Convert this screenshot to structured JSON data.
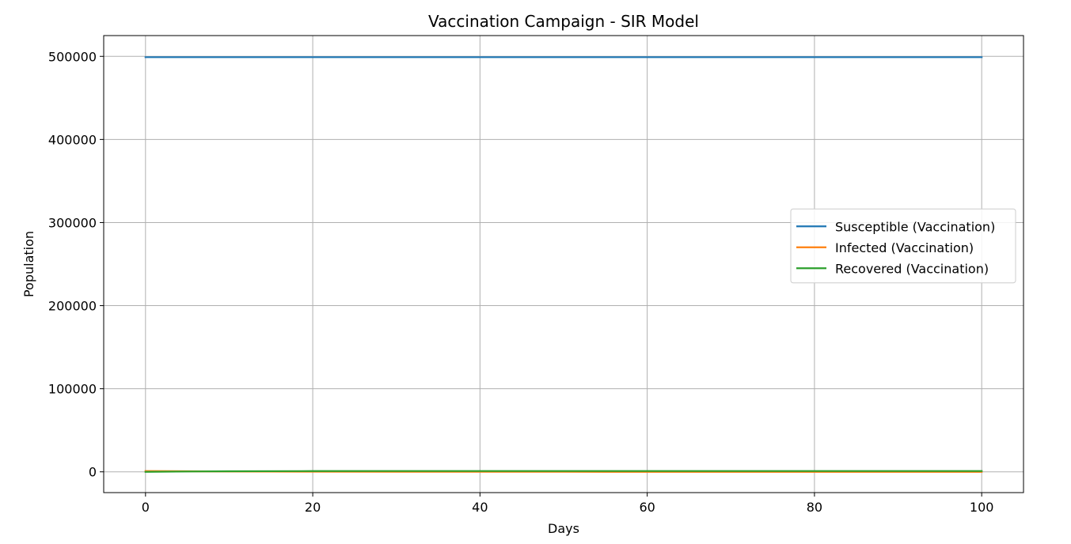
{
  "chart_data": {
    "type": "line",
    "title": "Vaccination Campaign - SIR Model",
    "xlabel": "Days",
    "ylabel": "Population",
    "xlim": [
      -5,
      105
    ],
    "ylim": [
      -25000,
      525000
    ],
    "xticks": [
      0,
      20,
      40,
      60,
      80,
      100
    ],
    "yticks": [
      0,
      100000,
      200000,
      300000,
      400000,
      500000
    ],
    "grid": true,
    "legend_position": "center-right",
    "series": [
      {
        "name": "Susceptible (Vaccination)",
        "color": "#1f77b4",
        "x": [
          0,
          10,
          20,
          30,
          40,
          50,
          60,
          70,
          80,
          90,
          100
        ],
        "y": [
          499000,
          499000,
          499000,
          499000,
          499000,
          499000,
          499000,
          499000,
          499000,
          499000,
          499000
        ]
      },
      {
        "name": "Infected (Vaccination)",
        "color": "#ff7f0e",
        "x": [
          0,
          5,
          10,
          20,
          30,
          40,
          50,
          60,
          70,
          80,
          90,
          100
        ],
        "y": [
          1000,
          700,
          400,
          200,
          100,
          50,
          20,
          10,
          5,
          0,
          0,
          0
        ]
      },
      {
        "name": "Recovered (Vaccination)",
        "color": "#2ca02c",
        "x": [
          0,
          5,
          10,
          20,
          30,
          40,
          50,
          60,
          70,
          80,
          90,
          100
        ],
        "y": [
          0,
          400,
          700,
          900,
          1000,
          1000,
          1000,
          1000,
          1000,
          1000,
          1000,
          1000
        ]
      }
    ]
  }
}
